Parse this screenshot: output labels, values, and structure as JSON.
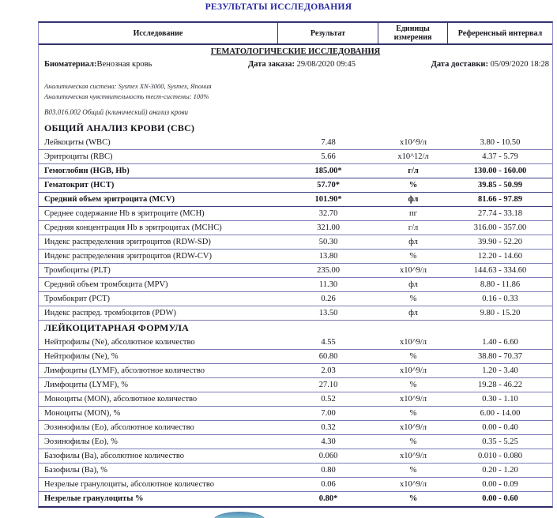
{
  "page_title": "РЕЗУЛЬТАТЫ ИССЛЕДОВАНИЯ",
  "colors": {
    "title_text": "#2929a0",
    "border_dark": "#33336e",
    "border_light": "#7b7bb6",
    "stamp_blue": "#3f7fb0"
  },
  "table": {
    "columns": {
      "study": "Исследование",
      "result": "Результат",
      "units": "Единицы измерения",
      "reference": "Референсный интервал"
    },
    "group_title": "ГЕМАТОЛОГИЧЕСКИЕ ИССЛЕДОВАНИЯ",
    "biomaterial_label": "Биоматериал:",
    "biomaterial_value": "Венозная кровь",
    "order_date_label": "Дата заказа:",
    "order_date_value": "29/08/2020 09:45",
    "delivery_date_label": "Дата доставки:",
    "delivery_date_value": "05/09/2020 18:28",
    "analytical_system": "Аналитическая система: Sysmex XN-3000, Sysmex, Япония",
    "analytical_sensitivity": "Аналитическая чувствительность тест-системы: 100%",
    "service_code": "B03.016.002 Общий (клинический) анализ крови",
    "rows": [
      {
        "type": "section",
        "name": "ОБЩИЙ АНАЛИЗ КРОВИ (СВС)"
      },
      {
        "type": "test",
        "name": "Лейкоциты (WBC)",
        "result": "7.48",
        "units": "x10^9/л",
        "range": "3.80 - 10.50",
        "flag": false
      },
      {
        "type": "test",
        "name": "Эритроциты (RBC)",
        "result": "5.66",
        "units": "x10^12/л",
        "range": "4.37 - 5.79",
        "flag": false
      },
      {
        "type": "test",
        "name": "Гемоглобин (HGB, Hb)",
        "result": "185.00*",
        "units": "г/л",
        "range": "130.00 - 160.00",
        "flag": true
      },
      {
        "type": "test",
        "name": "Гематокрит (HCT)",
        "result": "57.70*",
        "units": "%",
        "range": "39.85 - 50.99",
        "flag": true
      },
      {
        "type": "test",
        "name": "Средний объем эритроцита (MCV)",
        "result": "101.90*",
        "units": "фл",
        "range": "81.66 - 97.89",
        "flag": true
      },
      {
        "type": "test",
        "name": "Среднее содержание Hb в эритроците (MCH)",
        "result": "32.70",
        "units": "пг",
        "range": "27.74 - 33.18",
        "flag": false
      },
      {
        "type": "test",
        "name": "Средняя концентрация Hb в эритроцитах (MCHC)",
        "result": "321.00",
        "units": "г/л",
        "range": "316.00 - 357.00",
        "flag": false
      },
      {
        "type": "test",
        "name": "Индекс распределения эритроцитов (RDW-SD)",
        "result": "50.30",
        "units": "фл",
        "range": "39.90 - 52.20",
        "flag": false
      },
      {
        "type": "test",
        "name": "Индекс распределения эритроцитов (RDW-CV)",
        "result": "13.80",
        "units": "%",
        "range": "12.20 - 14.60",
        "flag": false
      },
      {
        "type": "test",
        "name": "Тромбоциты (PLT)",
        "result": "235.00",
        "units": "x10^9/л",
        "range": "144.63 - 334.60",
        "flag": false
      },
      {
        "type": "test",
        "name": "Средний объем тромбоцита (MPV)",
        "result": "11.30",
        "units": "фл",
        "range": "8.80 - 11.86",
        "flag": false
      },
      {
        "type": "test",
        "name": "Тромбокрит (PCT)",
        "result": "0.26",
        "units": "%",
        "range": "0.16 - 0.33",
        "flag": false
      },
      {
        "type": "test",
        "name": "Индекс распред. тромбоцитов (PDW)",
        "result": "13.50",
        "units": "фл",
        "range": "9.80 - 15.20",
        "flag": false
      },
      {
        "type": "section",
        "name": "ЛЕЙКОЦИТАРНАЯ ФОРМУЛА"
      },
      {
        "type": "test",
        "name": "Нейтрофилы (Ne), абсолютное количество",
        "result": "4.55",
        "units": "x10^9/л",
        "range": "1.40 - 6.60",
        "flag": false
      },
      {
        "type": "test",
        "name": "Нейтрофилы (Ne), %",
        "result": "60.80",
        "units": "%",
        "range": "38.80 - 70.37",
        "flag": false
      },
      {
        "type": "test",
        "name": "Лимфоциты (LYMF), абсолютное количество",
        "result": "2.03",
        "units": "x10^9/л",
        "range": "1.20 - 3.40",
        "flag": false
      },
      {
        "type": "test",
        "name": "Лимфоциты (LYMF), %",
        "result": "27.10",
        "units": "%",
        "range": "19.28 - 46.22",
        "flag": false
      },
      {
        "type": "test",
        "name": "Моноциты (MON), абсолютное количество",
        "result": "0.52",
        "units": "x10^9/л",
        "range": "0.30 - 1.10",
        "flag": false
      },
      {
        "type": "test",
        "name": "Моноциты (MON), %",
        "result": "7.00",
        "units": "%",
        "range": "6.00 - 14.00",
        "flag": false
      },
      {
        "type": "test",
        "name": "Эозинофилы (Eo), абсолютное количество",
        "result": "0.32",
        "units": "x10^9/л",
        "range": "0.00 - 0.40",
        "flag": false
      },
      {
        "type": "test",
        "name": "Эозинофилы (Eo), %",
        "result": "4.30",
        "units": "%",
        "range": "0.35 - 5.25",
        "flag": false
      },
      {
        "type": "test",
        "name": "Базофилы (Ba), абсолютное количество",
        "result": "0.060",
        "units": "x10^9/л",
        "range": "0.010 - 0.080",
        "flag": false
      },
      {
        "type": "test",
        "name": "Базофилы (Ba), %",
        "result": "0.80",
        "units": "%",
        "range": "0.20 - 1.20",
        "flag": false
      },
      {
        "type": "test",
        "name": "Незрелые гранулоциты, абсолютное количество",
        "result": "0.06",
        "units": "x10^9/л",
        "range": "0.00 - 0.09",
        "flag": false
      },
      {
        "type": "test",
        "name": "Незрелые гранулоциты %",
        "result": "0.80*",
        "units": "%",
        "range": "0.00 - 0.60",
        "flag": true
      }
    ]
  }
}
